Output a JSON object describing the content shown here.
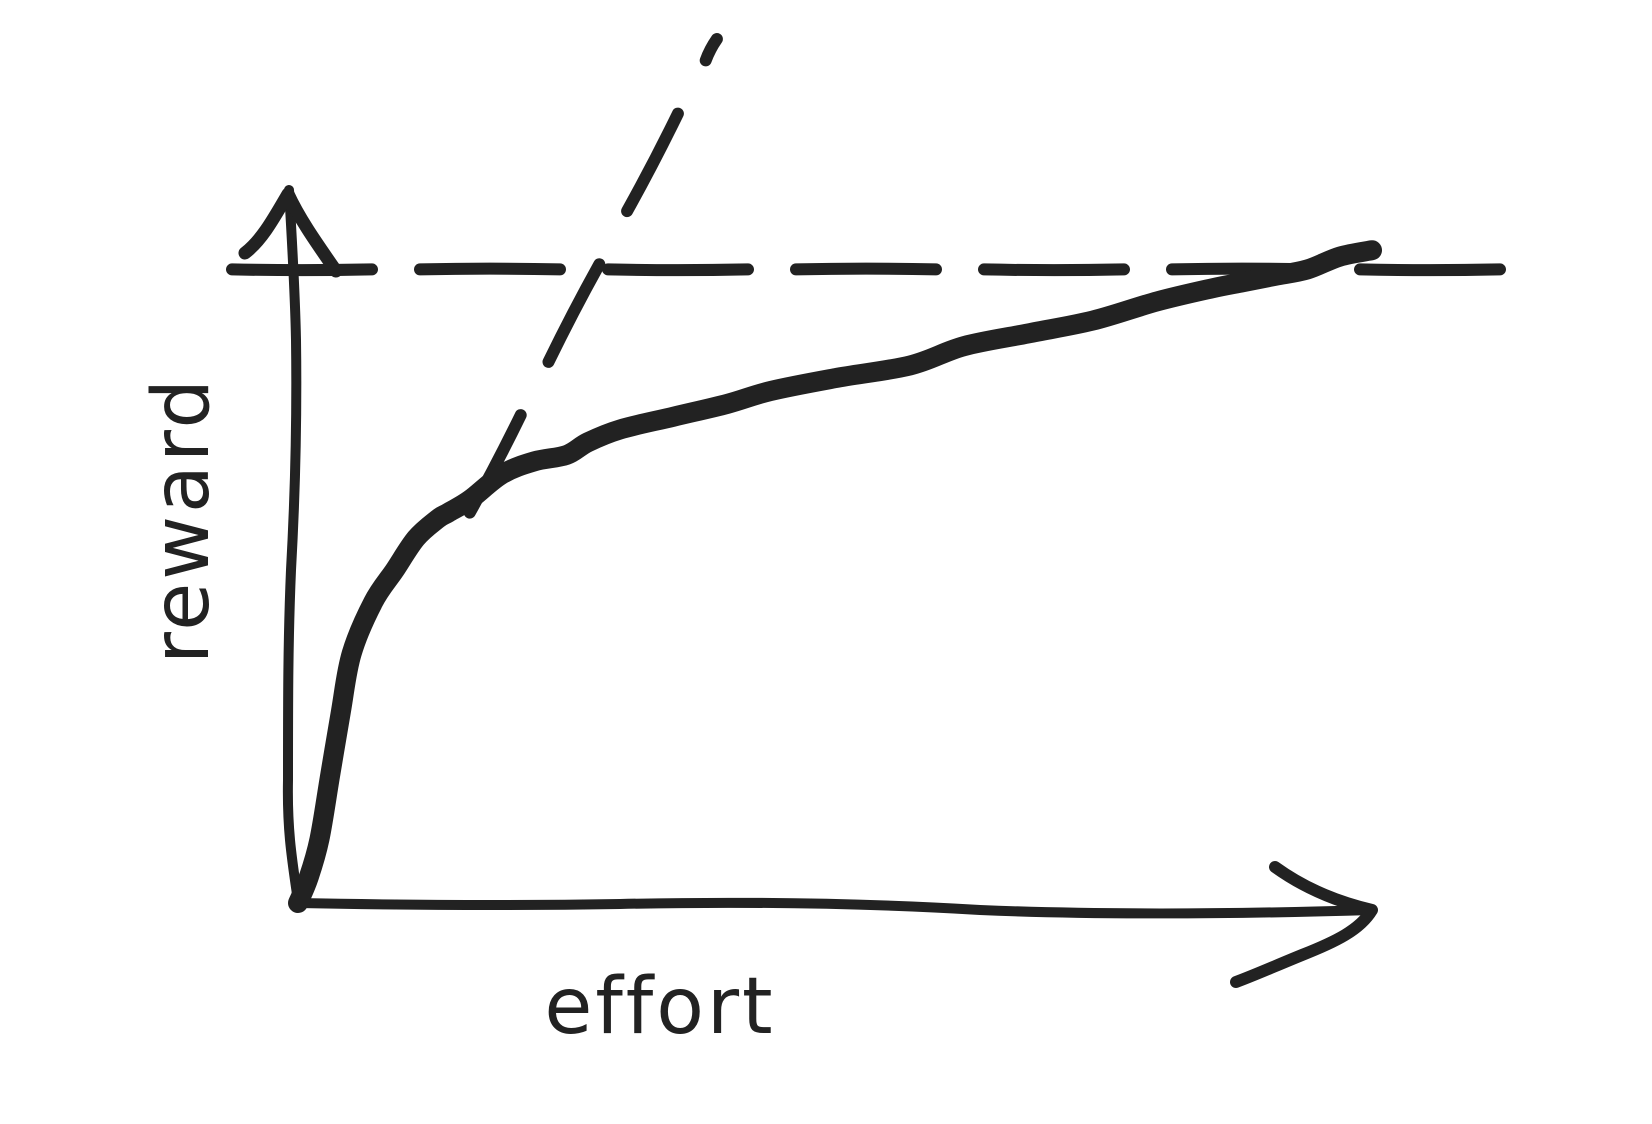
{
  "chart_data": {
    "type": "line",
    "title": "",
    "xlabel": "effort",
    "ylabel": "reward",
    "xlim": [
      0,
      100
    ],
    "ylim": [
      0,
      100
    ],
    "grid": false,
    "legend": "none",
    "series": [
      {
        "x": [
          0,
          1,
          2,
          3,
          4,
          5,
          7,
          9,
          11,
          13,
          14,
          16,
          19,
          22,
          25,
          27,
          30,
          35,
          40,
          44,
          50,
          57,
          62,
          68,
          74,
          80,
          85,
          88,
          91,
          94,
          97,
          100
        ],
        "y": [
          0,
          4,
          10,
          20,
          30,
          39,
          47,
          52,
          57,
          60,
          61,
          63,
          67,
          69,
          70,
          72,
          74,
          76,
          78,
          80,
          82,
          84,
          87,
          89,
          91,
          94,
          96,
          97,
          98,
          99,
          101,
          102
        ]
      }
    ],
    "reference_lines": [
      {
        "style": "dashed",
        "kind": "horizontal",
        "y": 99
      },
      {
        "style": "dashed",
        "kind": "linear",
        "x": [
          16,
          39
        ],
        "y": [
          61,
          135
        ]
      }
    ],
    "colors": {
      "ink": "#222222",
      "background": "#ffffff"
    }
  }
}
